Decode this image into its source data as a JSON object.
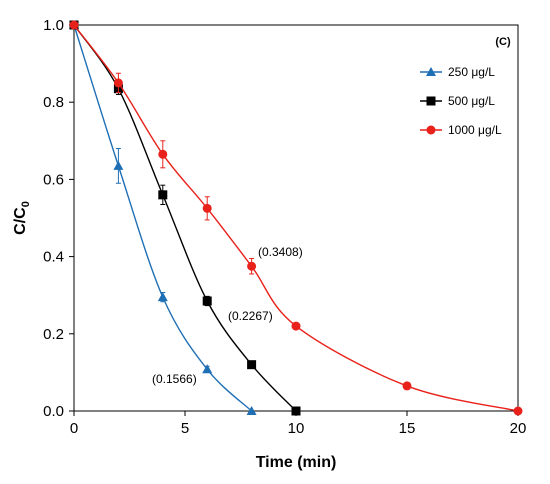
{
  "chart_data": {
    "type": "line",
    "panel_label": "(C)",
    "xlabel": "Time (min)",
    "ylabel": "C/C",
    "ylabel_sub": "0",
    "xlim": [
      0,
      20
    ],
    "ylim": [
      0,
      1.0
    ],
    "x_ticks": [
      "0",
      "5",
      "10",
      "15",
      "20"
    ],
    "y_ticks": [
      "0.0",
      "0.2",
      "0.4",
      "0.6",
      "0.8",
      "1.0"
    ],
    "grid": false,
    "legend_position": "top-right",
    "series": [
      {
        "name": "250 μg/L",
        "color": "#1f6fb5",
        "marker": "triangle",
        "x": [
          0,
          2,
          4,
          6,
          8
        ],
        "y": [
          1.0,
          0.635,
          0.295,
          0.108,
          0.0
        ],
        "err": [
          0,
          0.045,
          0.012,
          0.008,
          0
        ],
        "annotation": "(0.1566)"
      },
      {
        "name": "500 μg/L",
        "color": "#000000",
        "marker": "square",
        "x": [
          0,
          2,
          4,
          6,
          8,
          10
        ],
        "y": [
          1.0,
          0.835,
          0.56,
          0.285,
          0.12,
          0.0
        ],
        "err": [
          0,
          0.015,
          0.025,
          0.012,
          0,
          0
        ],
        "annotation": "(0.2267)"
      },
      {
        "name": "1000 μg/L",
        "color": "#e8211a",
        "marker": "circle",
        "x": [
          0,
          2,
          4,
          6,
          8,
          10,
          15,
          20
        ],
        "y": [
          1.0,
          0.85,
          0.665,
          0.525,
          0.375,
          0.22,
          0.065,
          0.0
        ],
        "err": [
          0,
          0.025,
          0.035,
          0.03,
          0.02,
          0,
          0,
          0
        ],
        "annotation": "(0.3408)"
      }
    ]
  }
}
